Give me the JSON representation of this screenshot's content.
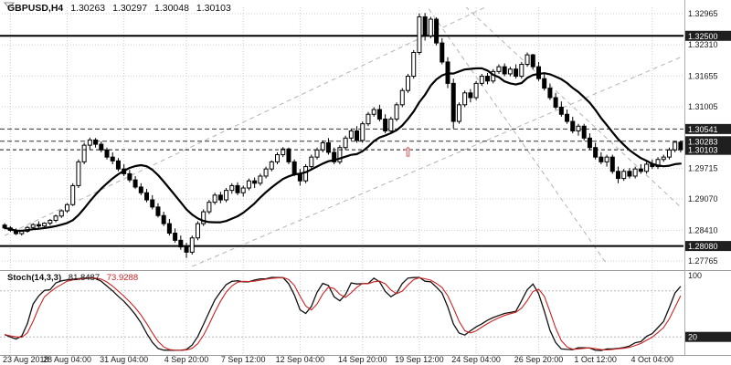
{
  "header": {
    "symbol": "GBPUSD,H4",
    "open": "1.30263",
    "high": "1.30297",
    "low": "1.30048",
    "close": "1.30103"
  },
  "chart_data": {
    "type": "candlestick",
    "symbol": "GBPUSD",
    "timeframe": "H4",
    "y_axis": {
      "range_top": 1.331,
      "range_bottom": 1.2765,
      "tick_labels": [
        "1.32965",
        "1.32310",
        "1.31655",
        "1.31005",
        "1.29715",
        "1.29070",
        "1.28410",
        "1.27765"
      ]
    },
    "x_axis": {
      "tick_labels": [
        "23 Aug 2018",
        "28 Aug 04:00",
        "31 Aug 04:00",
        "4 Sep 20:00",
        "7 Sep 12:00",
        "12 Sep 04:00",
        "14 Sep 20:00",
        "19 Sep 12:00",
        "24 Sep 04:00",
        "26 Sep 20:00",
        "1 Oct 12:00",
        "4 Oct 04:00"
      ],
      "tick_candle_indices": [
        1,
        11,
        21,
        32,
        42,
        52,
        63,
        73,
        83,
        94,
        104,
        114
      ]
    },
    "ma_period": 13,
    "candles": [
      [
        1.2852,
        1.2856,
        1.2843,
        1.2846
      ],
      [
        1.2846,
        1.285,
        1.2838,
        1.2841
      ],
      [
        1.2841,
        1.2845,
        1.2831,
        1.2834
      ],
      [
        1.2834,
        1.2842,
        1.283,
        1.2839
      ],
      [
        1.2839,
        1.285,
        1.2836,
        1.2847
      ],
      [
        1.2847,
        1.2856,
        1.2843,
        1.2853
      ],
      [
        1.2853,
        1.286,
        1.2846,
        1.285
      ],
      [
        1.285,
        1.2858,
        1.2844,
        1.2856
      ],
      [
        1.2856,
        1.2865,
        1.2851,
        1.2862
      ],
      [
        1.2862,
        1.2874,
        1.2858,
        1.2871
      ],
      [
        1.2871,
        1.2885,
        1.2867,
        1.2882
      ],
      [
        1.2882,
        1.2898,
        1.2878,
        1.2895
      ],
      [
        1.2895,
        1.294,
        1.2892,
        1.2935
      ],
      [
        1.2935,
        1.299,
        1.293,
        1.2985
      ],
      [
        1.2985,
        1.3025,
        1.298,
        1.302
      ],
      [
        1.302,
        1.3036,
        1.301,
        1.3031
      ],
      [
        1.3031,
        1.3035,
        1.3015,
        1.3022
      ],
      [
        1.3022,
        1.3028,
        1.3005,
        1.301
      ],
      [
        1.301,
        1.3015,
        1.299,
        1.2995
      ],
      [
        1.2995,
        1.3005,
        1.298,
        1.2987
      ],
      [
        1.2987,
        1.2993,
        1.2965,
        1.297
      ],
      [
        1.297,
        1.298,
        1.2955,
        1.296
      ],
      [
        1.296,
        1.2968,
        1.2942,
        1.2947
      ],
      [
        1.2947,
        1.2955,
        1.2928,
        1.2932
      ],
      [
        1.2932,
        1.294,
        1.2915,
        1.292
      ],
      [
        1.292,
        1.2928,
        1.29,
        1.2905
      ],
      [
        1.2905,
        1.2915,
        1.2885,
        1.289
      ],
      [
        1.289,
        1.2898,
        1.2868,
        1.2872
      ],
      [
        1.2872,
        1.288,
        1.285,
        1.2855
      ],
      [
        1.2855,
        1.2865,
        1.283,
        1.2835
      ],
      [
        1.2835,
        1.2845,
        1.2815,
        1.282
      ],
      [
        1.282,
        1.283,
        1.28,
        1.2806
      ],
      [
        1.2806,
        1.2815,
        1.2783,
        1.2795
      ],
      [
        1.2795,
        1.283,
        1.279,
        1.2825
      ],
      [
        1.2825,
        1.286,
        1.282,
        1.2855
      ],
      [
        1.2855,
        1.2885,
        1.285,
        1.288
      ],
      [
        1.288,
        1.2905,
        1.2875,
        1.29
      ],
      [
        1.29,
        1.292,
        1.2895,
        1.2915
      ],
      [
        1.2915,
        1.2922,
        1.2898,
        1.2905
      ],
      [
        1.2905,
        1.293,
        1.29,
        1.2925
      ],
      [
        1.2925,
        1.294,
        1.2918,
        1.2935
      ],
      [
        1.2935,
        1.2942,
        1.2915,
        1.292
      ],
      [
        1.292,
        1.2935,
        1.2912,
        1.293
      ],
      [
        1.293,
        1.295,
        1.2925,
        1.2945
      ],
      [
        1.2945,
        1.2952,
        1.293,
        1.294
      ],
      [
        1.294,
        1.296,
        1.2935,
        1.2955
      ],
      [
        1.2955,
        1.2975,
        1.295,
        1.297
      ],
      [
        1.297,
        1.2988,
        1.2965,
        1.2985
      ],
      [
        1.2985,
        1.3005,
        1.298,
        1.3
      ],
      [
        1.3,
        1.3016,
        1.2995,
        1.3012
      ],
      [
        1.3012,
        1.3015,
        1.298,
        1.2985
      ],
      [
        1.2985,
        1.299,
        1.2955,
        1.296
      ],
      [
        1.296,
        1.297,
        1.2935,
        1.2945
      ],
      [
        1.2945,
        1.298,
        1.294,
        1.2975
      ],
      [
        1.2975,
        1.3,
        1.297,
        1.2995
      ],
      [
        1.2995,
        1.3015,
        1.299,
        1.301
      ],
      [
        1.301,
        1.303,
        1.3005,
        1.3025
      ],
      [
        1.3025,
        1.3035,
        1.3,
        1.3005
      ],
      [
        1.3005,
        1.3015,
        1.298,
        1.2985
      ],
      [
        1.2985,
        1.302,
        1.298,
        1.3015
      ],
      [
        1.3015,
        1.304,
        1.301,
        1.3035
      ],
      [
        1.3035,
        1.3055,
        1.303,
        1.305
      ],
      [
        1.305,
        1.306,
        1.3025,
        1.303
      ],
      [
        1.303,
        1.307,
        1.3025,
        1.3065
      ],
      [
        1.3065,
        1.309,
        1.306,
        1.3085
      ],
      [
        1.3085,
        1.31,
        1.308,
        1.3095
      ],
      [
        1.3095,
        1.3105,
        1.307,
        1.3075
      ],
      [
        1.3075,
        1.3085,
        1.3045,
        1.305
      ],
      [
        1.305,
        1.308,
        1.3045,
        1.3075
      ],
      [
        1.3075,
        1.311,
        1.307,
        1.3105
      ],
      [
        1.3105,
        1.314,
        1.31,
        1.3135
      ],
      [
        1.3135,
        1.317,
        1.313,
        1.3165
      ],
      [
        1.3165,
        1.322,
        1.316,
        1.3215
      ],
      [
        1.3215,
        1.3297,
        1.321,
        1.329
      ],
      [
        1.329,
        1.3298,
        1.324,
        1.325
      ],
      [
        1.325,
        1.329,
        1.3245,
        1.3285
      ],
      [
        1.3285,
        1.3289,
        1.323,
        1.3235
      ],
      [
        1.3235,
        1.3245,
        1.319,
        1.3195
      ],
      [
        1.3195,
        1.3205,
        1.314,
        1.315
      ],
      [
        1.315,
        1.316,
        1.3055,
        1.307
      ],
      [
        1.307,
        1.311,
        1.3065,
        1.3105
      ],
      [
        1.3105,
        1.3135,
        1.31,
        1.313
      ],
      [
        1.313,
        1.3138,
        1.311,
        1.312
      ],
      [
        1.312,
        1.3155,
        1.3115,
        1.315
      ],
      [
        1.315,
        1.317,
        1.3145,
        1.3165
      ],
      [
        1.3165,
        1.3172,
        1.3148,
        1.3155
      ],
      [
        1.3155,
        1.318,
        1.315,
        1.3175
      ],
      [
        1.3175,
        1.319,
        1.317,
        1.3185
      ],
      [
        1.3185,
        1.3192,
        1.3165,
        1.317
      ],
      [
        1.317,
        1.3185,
        1.3165,
        1.318
      ],
      [
        1.318,
        1.319,
        1.316,
        1.3165
      ],
      [
        1.3165,
        1.3195,
        1.316,
        1.319
      ],
      [
        1.319,
        1.3215,
        1.3185,
        1.321
      ],
      [
        1.321,
        1.3212,
        1.318,
        1.3185
      ],
      [
        1.3185,
        1.3195,
        1.3155,
        1.316
      ],
      [
        1.316,
        1.317,
        1.3135,
        1.314
      ],
      [
        1.314,
        1.315,
        1.3115,
        1.312
      ],
      [
        1.312,
        1.313,
        1.3095,
        1.31
      ],
      [
        1.31,
        1.3112,
        1.308,
        1.3085
      ],
      [
        1.3085,
        1.3095,
        1.3065,
        1.307
      ],
      [
        1.307,
        1.308,
        1.3045,
        1.305
      ],
      [
        1.305,
        1.3065,
        1.304,
        1.306
      ],
      [
        1.306,
        1.3065,
        1.303,
        1.3035
      ],
      [
        1.3035,
        1.3045,
        1.301,
        1.3015
      ],
      [
        1.3015,
        1.3025,
        1.299,
        1.2995
      ],
      [
        1.2995,
        1.3005,
        1.298,
        1.2985
      ],
      [
        1.2985,
        1.3,
        1.2975,
        1.2995
      ],
      [
        1.2995,
        1.3,
        1.296,
        1.2965
      ],
      [
        1.2965,
        1.2975,
        1.294,
        1.295
      ],
      [
        1.295,
        1.297,
        1.2945,
        1.2965
      ],
      [
        1.2965,
        1.2972,
        1.295,
        1.2955
      ],
      [
        1.2955,
        1.2975,
        1.295,
        1.297
      ],
      [
        1.297,
        1.298,
        1.296,
        1.2965
      ],
      [
        1.2965,
        1.2985,
        1.296,
        1.298
      ],
      [
        1.298,
        1.299,
        1.297,
        1.2975
      ],
      [
        1.2975,
        1.2995,
        1.297,
        1.299
      ],
      [
        1.299,
        1.3,
        1.2985,
        1.2995
      ],
      [
        1.2995,
        1.3015,
        1.299,
        1.301
      ],
      [
        1.301,
        1.3029,
        1.3005,
        1.30263
      ],
      [
        1.30263,
        1.30297,
        1.30048,
        1.30103
      ]
    ],
    "levels": {
      "resistance": {
        "price": 1.325,
        "label": "1.32500"
      },
      "support": {
        "price": 1.2808,
        "label": "1.28080"
      },
      "dashed": [
        {
          "price": 1.30541,
          "label": "1.30541"
        },
        {
          "price": 1.30283,
          "label": "1.30283"
        }
      ],
      "current": {
        "price": 1.30103,
        "label": "1.30103"
      }
    },
    "trendlines": [
      {
        "i1": 0,
        "p1": 1.283,
        "i2": 89,
        "p2": 1.3335,
        "dir": "up"
      },
      {
        "i1": 33,
        "p1": 1.2765,
        "i2": 119,
        "p2": 1.3205,
        "dir": "up"
      },
      {
        "i1": 73,
        "p1": 1.3335,
        "i2": 106,
        "p2": 1.277,
        "dir": "down"
      },
      {
        "i1": 79,
        "p1": 1.3335,
        "i2": 119,
        "p2": 1.289,
        "dir": "down"
      }
    ],
    "annotations": [
      {
        "type": "arrow-up",
        "candle_index": 71,
        "price": 1.3015,
        "color": "#dd7a7a"
      }
    ],
    "indicator": {
      "name_label": "Stoch(14,3,3)",
      "value_main": "81.8487",
      "value_signal": "73.9288",
      "k_period": 14,
      "k_slow": 3,
      "d_period": 3,
      "levels": [
        80,
        20
      ],
      "scale_ticks": [
        {
          "value": 100,
          "label": "100",
          "badge": false
        },
        {
          "value": 20,
          "label": "20",
          "badge": true
        }
      ],
      "colors": {
        "main": "#111111",
        "signal": "#cc2222"
      }
    },
    "colors": {
      "bg": "#ffffff",
      "grid": "#cdcdcd",
      "trend": "#b3b3b3",
      "bull": "#ffffff",
      "bear": "#000000",
      "outline": "#000000",
      "ma": "#000000",
      "sr": "#000000",
      "dashed": "#333333",
      "current": "#111111",
      "badge_bg": "#1f1f1f",
      "badge_fg": "#ffffff",
      "axis_text": "#1a1a1a"
    }
  }
}
